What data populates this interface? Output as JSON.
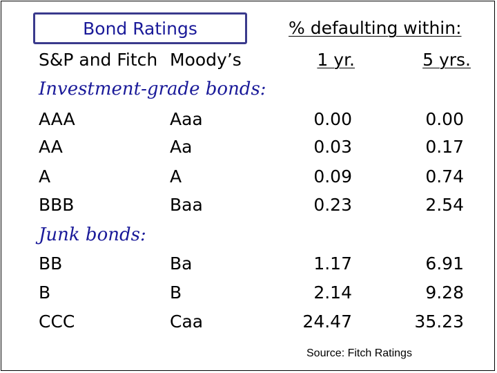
{
  "title": "Bond Ratings",
  "header": {
    "period_label": "% defaulting within:",
    "col_sp_fitch": "S&P and Fitch",
    "col_moodys": "Moody’s",
    "col_1yr": "1 yr.",
    "col_5yr": "5 yrs."
  },
  "sections": [
    {
      "label": "Investment-grade bonds:",
      "rows": [
        {
          "sp_fitch": "AAA",
          "moodys": "Aaa",
          "yr1": "0.00",
          "yr5": "0.00"
        },
        {
          "sp_fitch": "AA",
          "moodys": "Aa",
          "yr1": "0.03",
          "yr5": "0.17"
        },
        {
          "sp_fitch": "A",
          "moodys": "A",
          "yr1": "0.09",
          "yr5": "0.74"
        },
        {
          "sp_fitch": "BBB",
          "moodys": "Baa",
          "yr1": "0.23",
          "yr5": "2.54"
        }
      ]
    },
    {
      "label": "Junk bonds:",
      "rows": [
        {
          "sp_fitch": "BB",
          "moodys": "Ba",
          "yr1": "1.17",
          "yr5": "6.91"
        },
        {
          "sp_fitch": "B",
          "moodys": "B",
          "yr1": "2.14",
          "yr5": "9.28"
        },
        {
          "sp_fitch": "CCC",
          "moodys": "Caa",
          "yr1": "24.47",
          "yr5": "35.23"
        }
      ]
    }
  ],
  "source": "Source: Fitch Ratings",
  "colors": {
    "accent": "#1a1a99",
    "box_border": "#3a3a8c"
  }
}
